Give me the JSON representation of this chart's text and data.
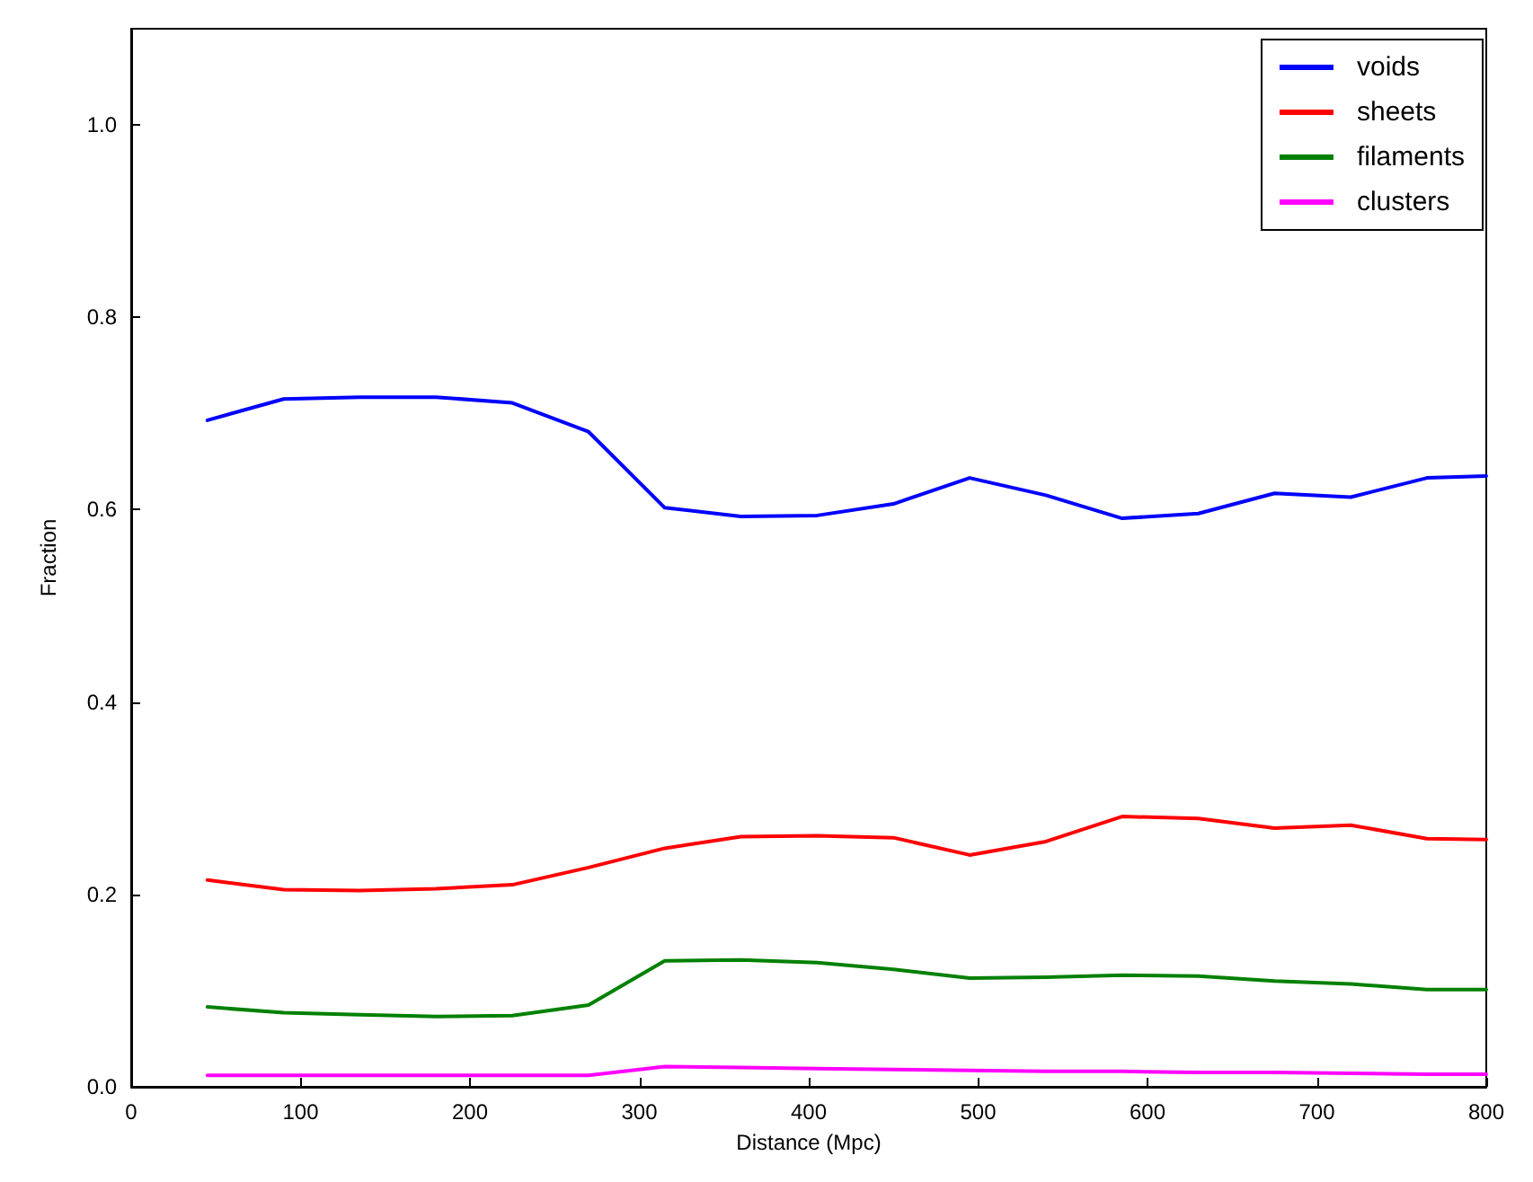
{
  "chart_data": {
    "type": "line",
    "xlabel": "Distance (Mpc)",
    "ylabel": "Fraction",
    "x": [
      45,
      90,
      135,
      180,
      225,
      270,
      315,
      360,
      405,
      450,
      495,
      540,
      585,
      630,
      675,
      720,
      765,
      800
    ],
    "series": [
      {
        "name": "voids",
        "color": "#0000ff",
        "values": [
          0.693,
          0.715,
          0.717,
          0.717,
          0.711,
          0.681,
          0.602,
          0.593,
          0.594,
          0.606,
          0.633,
          0.615,
          0.591,
          0.596,
          0.617,
          0.613,
          0.633,
          0.635
        ]
      },
      {
        "name": "sheets",
        "color": "#ff0000",
        "values": [
          0.215,
          0.205,
          0.204,
          0.206,
          0.21,
          0.228,
          0.248,
          0.26,
          0.261,
          0.259,
          0.241,
          0.255,
          0.281,
          0.279,
          0.269,
          0.272,
          0.258,
          0.257
        ]
      },
      {
        "name": "filaments",
        "color": "#008000",
        "values": [
          0.083,
          0.077,
          0.075,
          0.073,
          0.074,
          0.085,
          0.131,
          0.132,
          0.129,
          0.122,
          0.113,
          0.114,
          0.116,
          0.115,
          0.11,
          0.107,
          0.101,
          0.101
        ]
      },
      {
        "name": "clusters",
        "color": "#ff00ff",
        "values": [
          0.012,
          0.012,
          0.012,
          0.012,
          0.012,
          0.012,
          0.021,
          0.02,
          0.019,
          0.018,
          0.017,
          0.016,
          0.016,
          0.015,
          0.015,
          0.014,
          0.013,
          0.013
        ]
      }
    ],
    "xlim": [
      0,
      800
    ],
    "xticks": [
      0,
      100,
      200,
      300,
      400,
      500,
      600,
      700,
      800
    ],
    "ylim": [
      0,
      1.1
    ],
    "yticks": [
      {
        "value": 0,
        "label": "0.0"
      },
      {
        "value": 0.2,
        "label": "0.2"
      },
      {
        "value": 0.4,
        "label": "0.4"
      },
      {
        "value": 0.6,
        "label": "0.6"
      },
      {
        "value": 0.8,
        "label": "0.8"
      },
      {
        "value": 1.0,
        "label": "1.0"
      }
    ],
    "grid": false,
    "legend": "top right",
    "marker": "none",
    "line_style": "solid"
  }
}
